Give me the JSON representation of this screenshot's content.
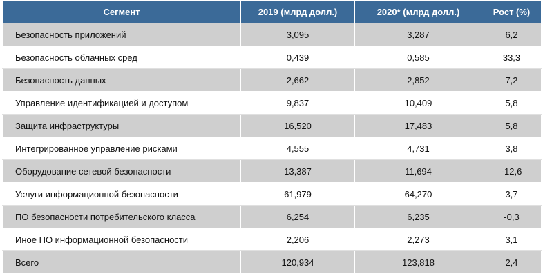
{
  "table": {
    "headers": [
      "Сегмент",
      "2019 (млрд долл.)",
      "2020* (млрд долл.)",
      "Рост (%)"
    ],
    "rows": [
      {
        "segment": "Безопасность приложений",
        "v2019": "3,095",
        "v2020": "3,287",
        "growth": "6,2"
      },
      {
        "segment": "Безопасность облачных сред",
        "v2019": "0,439",
        "v2020": "0,585",
        "growth": "33,3"
      },
      {
        "segment": "Безопасность данных",
        "v2019": "2,662",
        "v2020": "2,852",
        "growth": "7,2"
      },
      {
        "segment": "Управление идентификацией и доступом",
        "v2019": "9,837",
        "v2020": "10,409",
        "growth": "5,8"
      },
      {
        "segment": "Защита инфраструктуры",
        "v2019": "16,520",
        "v2020": "17,483",
        "growth": "5,8"
      },
      {
        "segment": "Интегрированное управление рисками",
        "v2019": "4,555",
        "v2020": "4,731",
        "growth": "3,8"
      },
      {
        "segment": "Оборудование сетевой безопасности",
        "v2019": "13,387",
        "v2020": "11,694",
        "growth": "-12,6"
      },
      {
        "segment": "Услуги информационной безопасности",
        "v2019": "61,979",
        "v2020": "64,270",
        "growth": "3,7"
      },
      {
        "segment": "ПО безопасности потребительского класса",
        "v2019": "6,254",
        "v2020": "6,235",
        "growth": "-0,3"
      },
      {
        "segment": "Иное ПО информационной безопасности",
        "v2019": "2,206",
        "v2020": "2,273",
        "growth": "3,1"
      },
      {
        "segment": "Всего",
        "v2019": "120,934",
        "v2020": "123,818",
        "growth": "2,4"
      }
    ]
  },
  "colors": {
    "header_bg": "#3b6a98",
    "header_text": "#ffffff",
    "row_shade": "#cfcfcf",
    "row_plain": "#ffffff"
  }
}
